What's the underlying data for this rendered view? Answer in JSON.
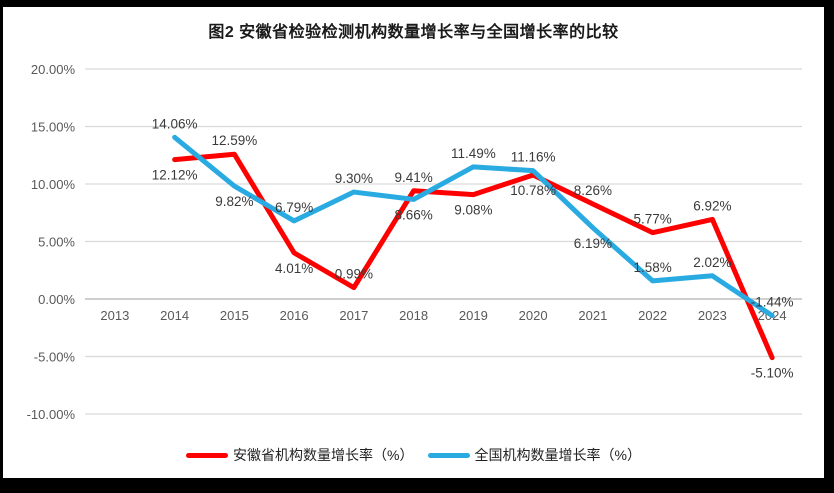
{
  "chart_data": {
    "type": "line",
    "title": "图2 安徽省检验检测机构数量增长率与全国增长率的比较",
    "categories": [
      "2013",
      "2014",
      "2015",
      "2016",
      "2017",
      "2018",
      "2019",
      "2020",
      "2021",
      "2022",
      "2023",
      "2024"
    ],
    "series": [
      {
        "name": "安徽省机构数量增长率（%）",
        "color": "#FF0000",
        "values": [
          null,
          12.12,
          12.59,
          4.01,
          0.99,
          9.41,
          9.08,
          10.78,
          8.26,
          5.77,
          6.92,
          -5.1
        ],
        "labels": [
          "",
          "12.12%",
          "12.59%",
          "4.01%",
          "0.99%",
          "9.41%",
          "9.08%",
          "10.78%",
          "8.26%",
          "5.77%",
          "6.92%",
          "-5.10%"
        ],
        "label_side": [
          "",
          "below",
          "above",
          "below",
          "above",
          "above",
          "below",
          "below",
          "above",
          "above",
          "above",
          "below"
        ]
      },
      {
        "name": "全国机构数量增长率（%）",
        "color": "#29ABE2",
        "values": [
          null,
          14.06,
          9.82,
          6.79,
          9.3,
          8.66,
          11.49,
          11.16,
          6.19,
          1.58,
          2.02,
          -1.44
        ],
        "labels": [
          "",
          "14.06%",
          "9.82%",
          "6.79%",
          "9.30%",
          "8.66%",
          "11.49%",
          "11.16%",
          "6.19%",
          "1.58%",
          "2.02%",
          "-1.44%"
        ],
        "label_side": [
          "",
          "above",
          "below",
          "above",
          "above",
          "below",
          "above",
          "above",
          "below",
          "above",
          "above",
          "above"
        ]
      }
    ],
    "y_axis": {
      "min": -10,
      "max": 20,
      "step": 5,
      "tick_labels": [
        "20.00%",
        "15.00%",
        "10.00%",
        "5.00%",
        "0.00%",
        "-5.00%",
        "-10.00%"
      ]
    },
    "xlabel": "",
    "ylabel": "",
    "ylim": [
      -10,
      20
    ],
    "grid": true,
    "legend_position": "bottom",
    "colors": {
      "gridline": "#D9D9D9",
      "zero_axis": "#BFBFBF",
      "tick_text": "#595959",
      "data_label_text": "#3A3A3A"
    }
  }
}
